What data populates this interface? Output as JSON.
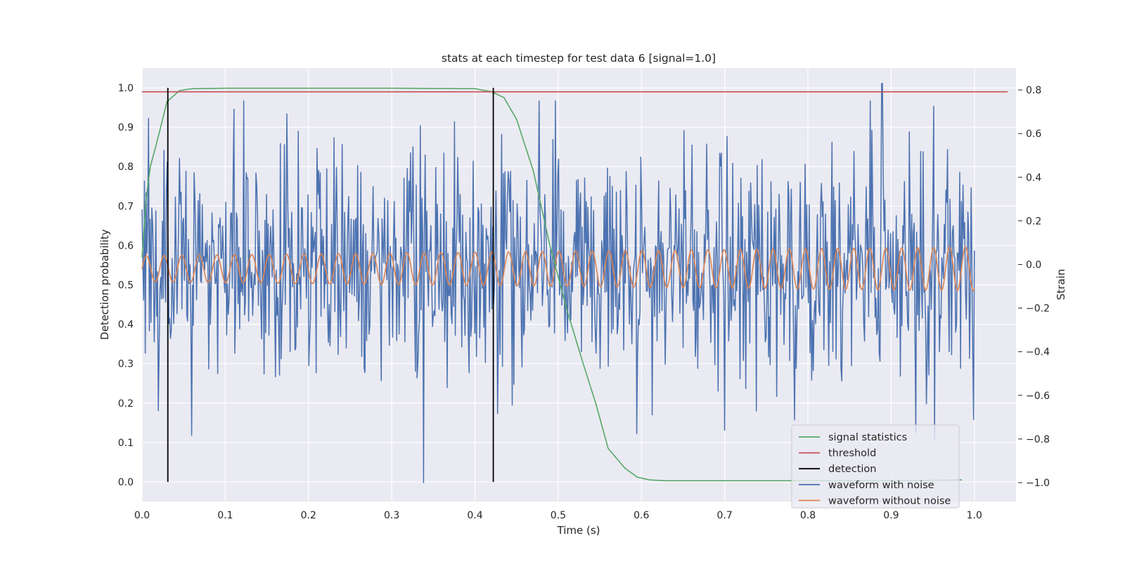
{
  "chart_data": {
    "type": "line",
    "title": "stats at each timestep for test data 6 [signal=1.0]",
    "xlabel": "Time (s)",
    "ylabel": "Detection probability",
    "y2label": "Strain",
    "xlim": [
      0.0,
      1.05
    ],
    "ylim": [
      -0.05,
      1.05
    ],
    "y2lim": [
      -1.087,
      0.9
    ],
    "xticks": [
      "0.0",
      "0.1",
      "0.2",
      "0.3",
      "0.4",
      "0.5",
      "0.6",
      "0.7",
      "0.8",
      "0.9",
      "1.0"
    ],
    "yticks": [
      "0.0",
      "0.1",
      "0.2",
      "0.3",
      "0.4",
      "0.5",
      "0.6",
      "0.7",
      "0.8",
      "0.9",
      "1.0"
    ],
    "y2ticks": [
      "−1.0",
      "−0.8",
      "−0.6",
      "−0.4",
      "−0.2",
      "0.0",
      "0.2",
      "0.4",
      "0.6",
      "0.8"
    ],
    "grid": true,
    "legend_position": "lower-right",
    "legend": [
      "signal statistics",
      "threshold",
      "detection",
      "waveform with noise",
      "waveform without noise"
    ],
    "colors": {
      "signal_statistics": "#55a868",
      "threshold": "#c44e52",
      "detection": "#000000",
      "waveform_with_noise": "#4c72b0",
      "waveform_without_noise": "#dd8452",
      "plot_background": "#eaeaf2",
      "grid": "#ffffff"
    },
    "series": [
      {
        "name": "signal statistics",
        "axis": "left",
        "x": [
          0.0,
          0.005,
          0.01,
          0.015,
          0.02,
          0.03,
          0.045,
          0.06,
          0.1,
          0.2,
          0.3,
          0.4,
          0.42,
          0.435,
          0.45,
          0.47,
          0.49,
          0.51,
          0.53,
          0.545,
          0.56,
          0.58,
          0.595,
          0.61,
          0.63,
          0.7,
          0.8,
          0.9,
          0.985
        ],
        "y": [
          0.57,
          0.72,
          0.8,
          0.84,
          0.88,
          0.965,
          0.993,
          0.998,
          0.999,
          0.999,
          0.999,
          0.998,
          0.99,
          0.975,
          0.92,
          0.79,
          0.6,
          0.44,
          0.3,
          0.2,
          0.085,
          0.035,
          0.012,
          0.005,
          0.003,
          0.003,
          0.003,
          0.003,
          0.005
        ]
      },
      {
        "name": "threshold",
        "axis": "left",
        "x": [
          0.0,
          1.04
        ],
        "y": [
          0.99,
          0.99
        ]
      },
      {
        "name": "detection",
        "axis": "left",
        "segments": [
          {
            "x": 0.031,
            "y0": 0.0,
            "y1": 1.0
          },
          {
            "x": 0.422,
            "y0": 0.0,
            "y1": 1.0
          }
        ]
      },
      {
        "name": "waveform with noise",
        "axis": "right",
        "x_start": 0.0,
        "x_end": 1.0,
        "n_points": 1024,
        "description_stats": {
          "std": 0.25,
          "min": -1.0,
          "max": 0.83
        },
        "spikes": [
          {
            "x": 0.338,
            "y": -1.0
          },
          {
            "x": 0.889,
            "y": 0.83
          },
          {
            "x": 0.02,
            "y": -0.67
          },
          {
            "x": 0.952,
            "y": -0.8
          },
          {
            "x": 0.93,
            "y": -0.77
          },
          {
            "x": 0.7,
            "y": -0.76
          },
          {
            "x": 0.89,
            "y": 0.83
          }
        ]
      },
      {
        "name": "waveform without noise",
        "axis": "right",
        "x_start": 0.0,
        "x_end": 1.0,
        "amplitude_start": 0.06,
        "amplitude_end": 0.1,
        "cycles": 47,
        "offset": -0.02
      }
    ]
  }
}
